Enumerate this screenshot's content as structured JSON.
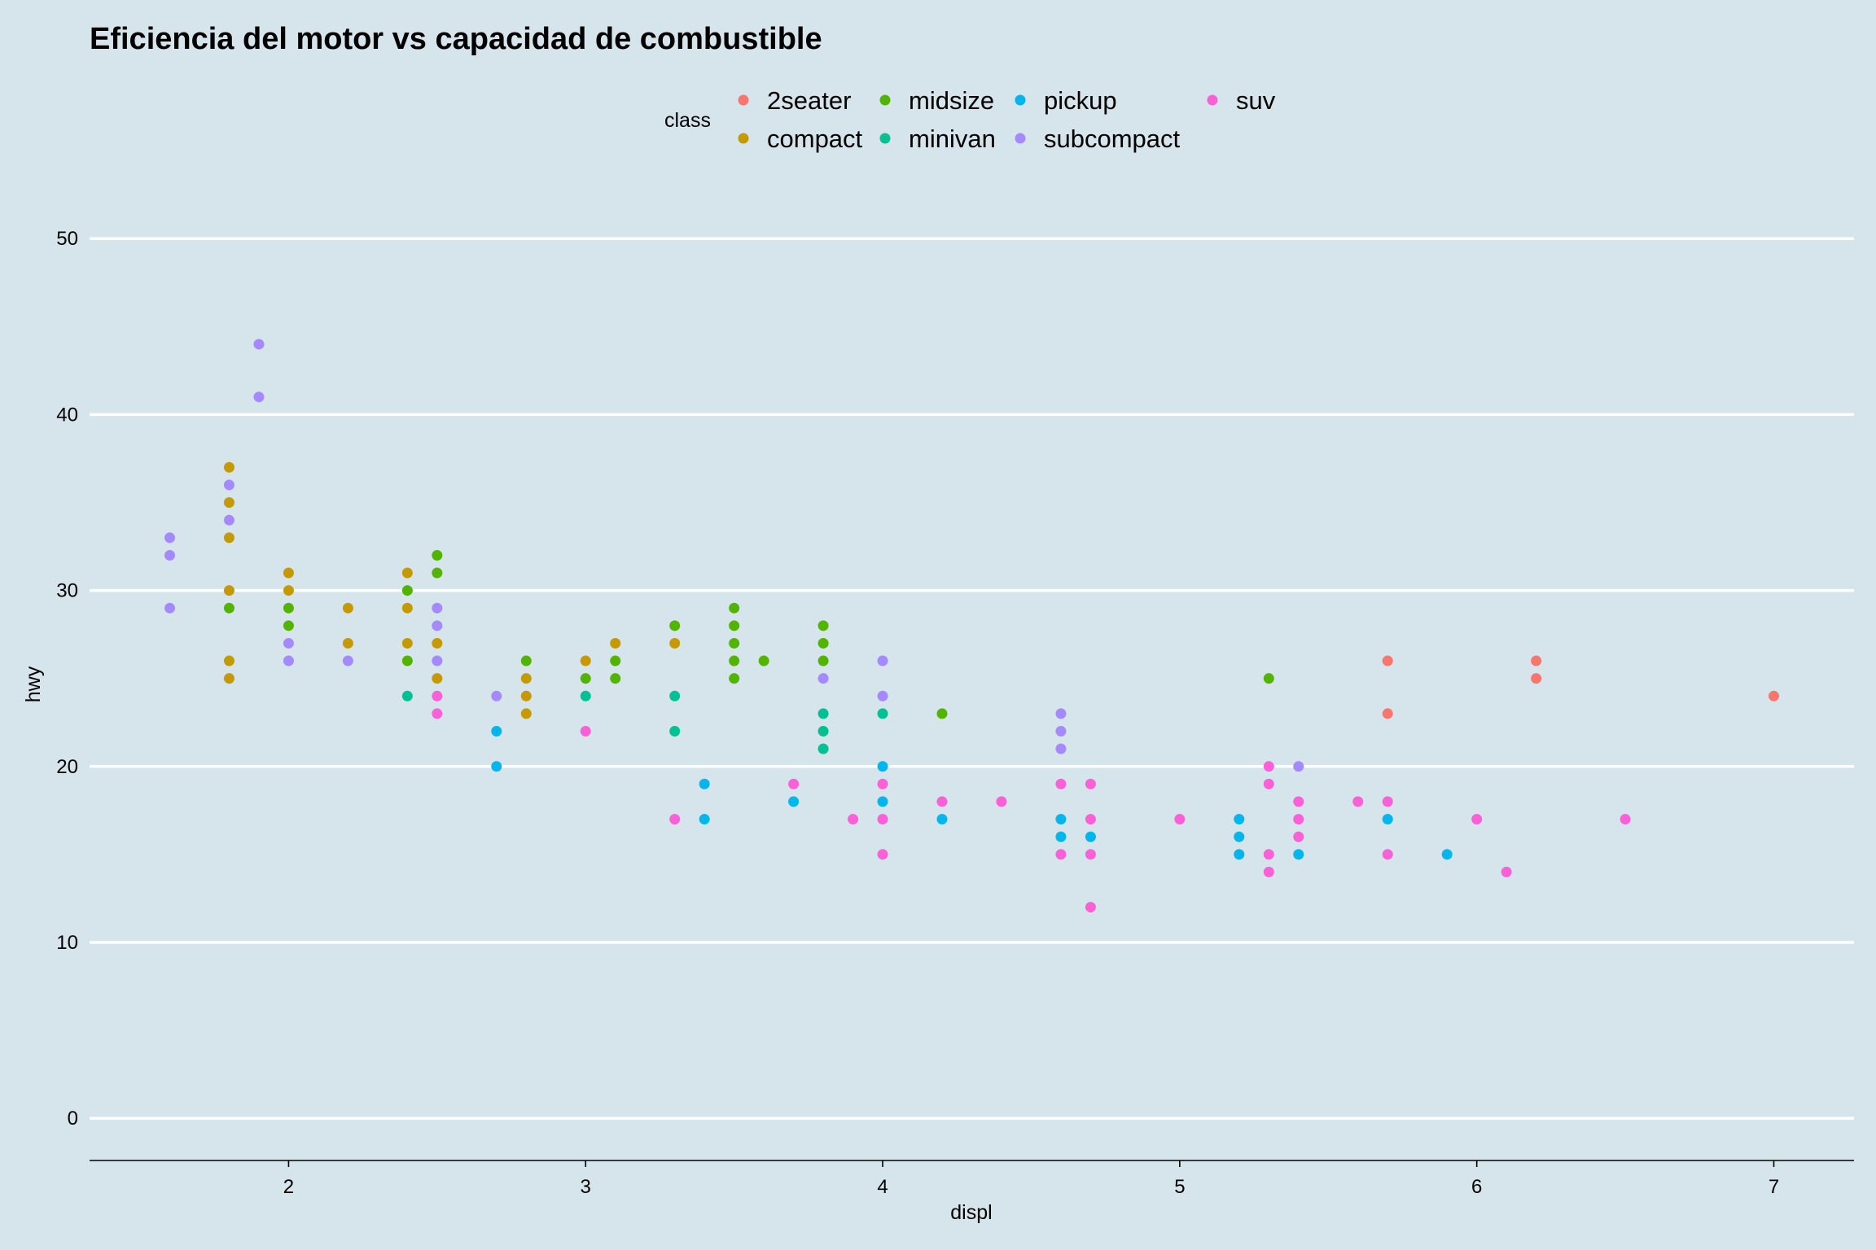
{
  "chart_data": {
    "type": "scatter",
    "title": "Eficiencia del motor vs capacidad de combustible",
    "xlabel": "displ",
    "ylabel": "hwy",
    "xlim": [
      1.33,
      7.27
    ],
    "ylim": [
      -2.4,
      52
    ],
    "x_ticks": [
      2,
      3,
      4,
      5,
      6,
      7
    ],
    "y_ticks": [
      0,
      10,
      20,
      30,
      40,
      50
    ],
    "grid": "horizontal-major",
    "legend": {
      "title": "class",
      "position": "top"
    },
    "series": [
      {
        "name": "2seater",
        "color": "#F8766D",
        "points": [
          [
            5.7,
            26
          ],
          [
            5.7,
            23
          ],
          [
            6.2,
            26
          ],
          [
            6.2,
            25
          ],
          [
            7.0,
            24
          ]
        ]
      },
      {
        "name": "compact",
        "color": "#C49A00",
        "points": [
          [
            1.8,
            37
          ],
          [
            1.8,
            35
          ],
          [
            1.8,
            33
          ],
          [
            1.8,
            30
          ],
          [
            1.8,
            26
          ],
          [
            1.8,
            25
          ],
          [
            2.0,
            31
          ],
          [
            2.0,
            30
          ],
          [
            2.2,
            29
          ],
          [
            2.2,
            27
          ],
          [
            2.4,
            31
          ],
          [
            2.4,
            29
          ],
          [
            2.4,
            27
          ],
          [
            2.5,
            27
          ],
          [
            2.5,
            25
          ],
          [
            2.8,
            25
          ],
          [
            2.8,
            24
          ],
          [
            2.8,
            23
          ],
          [
            3.0,
            26
          ],
          [
            3.1,
            27
          ],
          [
            3.3,
            27
          ]
        ]
      },
      {
        "name": "midsize",
        "color": "#53B400",
        "points": [
          [
            1.8,
            29
          ],
          [
            2.0,
            29
          ],
          [
            2.0,
            28
          ],
          [
            2.4,
            30
          ],
          [
            2.4,
            26
          ],
          [
            2.5,
            32
          ],
          [
            2.5,
            31
          ],
          [
            2.8,
            26
          ],
          [
            3.0,
            25
          ],
          [
            3.1,
            26
          ],
          [
            3.1,
            25
          ],
          [
            3.3,
            28
          ],
          [
            3.5,
            29
          ],
          [
            3.5,
            28
          ],
          [
            3.5,
            27
          ],
          [
            3.5,
            26
          ],
          [
            3.5,
            25
          ],
          [
            3.6,
            26
          ],
          [
            3.8,
            28
          ],
          [
            3.8,
            27
          ],
          [
            3.8,
            26
          ],
          [
            4.2,
            23
          ],
          [
            5.3,
            25
          ]
        ]
      },
      {
        "name": "minivan",
        "color": "#00C094",
        "points": [
          [
            2.4,
            24
          ],
          [
            3.0,
            24
          ],
          [
            3.3,
            24
          ],
          [
            3.3,
            22
          ],
          [
            3.8,
            23
          ],
          [
            3.8,
            22
          ],
          [
            3.8,
            21
          ],
          [
            4.0,
            23
          ]
        ]
      },
      {
        "name": "pickup",
        "color": "#00B6EB",
        "points": [
          [
            2.7,
            22
          ],
          [
            2.7,
            20
          ],
          [
            3.4,
            19
          ],
          [
            3.4,
            17
          ],
          [
            3.7,
            18
          ],
          [
            4.0,
            20
          ],
          [
            4.0,
            18
          ],
          [
            4.2,
            17
          ],
          [
            4.6,
            17
          ],
          [
            4.6,
            16
          ],
          [
            4.7,
            16
          ],
          [
            5.2,
            17
          ],
          [
            5.2,
            16
          ],
          [
            5.2,
            15
          ],
          [
            5.4,
            15
          ],
          [
            5.7,
            17
          ],
          [
            5.9,
            15
          ]
        ]
      },
      {
        "name": "subcompact",
        "color": "#A58AFF",
        "points": [
          [
            1.6,
            33
          ],
          [
            1.6,
            32
          ],
          [
            1.6,
            29
          ],
          [
            1.8,
            36
          ],
          [
            1.8,
            34
          ],
          [
            1.9,
            44
          ],
          [
            1.9,
            41
          ],
          [
            2.0,
            27
          ],
          [
            2.0,
            26
          ],
          [
            2.2,
            26
          ],
          [
            2.5,
            29
          ],
          [
            2.5,
            28
          ],
          [
            2.5,
            26
          ],
          [
            2.7,
            24
          ],
          [
            3.8,
            25
          ],
          [
            4.0,
            26
          ],
          [
            4.0,
            24
          ],
          [
            4.6,
            23
          ],
          [
            4.6,
            22
          ],
          [
            4.6,
            21
          ],
          [
            5.4,
            20
          ]
        ]
      },
      {
        "name": "suv",
        "color": "#FB61D7",
        "points": [
          [
            2.5,
            24
          ],
          [
            2.5,
            23
          ],
          [
            3.0,
            22
          ],
          [
            3.3,
            17
          ],
          [
            3.7,
            19
          ],
          [
            3.9,
            17
          ],
          [
            4.0,
            19
          ],
          [
            4.0,
            17
          ],
          [
            4.0,
            15
          ],
          [
            4.2,
            18
          ],
          [
            4.4,
            18
          ],
          [
            4.6,
            19
          ],
          [
            4.6,
            15
          ],
          [
            4.7,
            19
          ],
          [
            4.7,
            17
          ],
          [
            4.7,
            15
          ],
          [
            4.7,
            12
          ],
          [
            5.0,
            17
          ],
          [
            5.3,
            20
          ],
          [
            5.3,
            19
          ],
          [
            5.3,
            15
          ],
          [
            5.3,
            14
          ],
          [
            5.4,
            18
          ],
          [
            5.4,
            17
          ],
          [
            5.4,
            16
          ],
          [
            5.6,
            18
          ],
          [
            5.7,
            18
          ],
          [
            5.7,
            15
          ],
          [
            6.0,
            17
          ],
          [
            6.1,
            14
          ],
          [
            6.5,
            17
          ]
        ]
      }
    ]
  }
}
